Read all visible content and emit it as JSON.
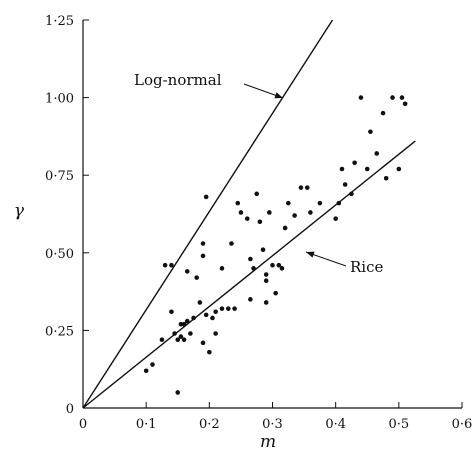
{
  "chart_data": {
    "type": "scatter",
    "xlabel": "m",
    "ylabel": "γ",
    "xlim": [
      0,
      0.6
    ],
    "ylim": [
      0,
      1.25
    ],
    "x_ticks": [
      {
        "value": 0,
        "label": "0"
      },
      {
        "value": 0.1,
        "label": "0·1"
      },
      {
        "value": 0.2,
        "label": "0·2"
      },
      {
        "value": 0.3,
        "label": "0·3"
      },
      {
        "value": 0.4,
        "label": "0·4"
      },
      {
        "value": 0.5,
        "label": "0·5"
      },
      {
        "value": 0.6,
        "label": "0·6"
      }
    ],
    "y_ticks": [
      {
        "value": 0,
        "label": "0"
      },
      {
        "value": 0.25,
        "label": "0·25"
      },
      {
        "value": 0.5,
        "label": "0·50"
      },
      {
        "value": 0.75,
        "label": "0·75"
      },
      {
        "value": 1.0,
        "label": "1·00"
      },
      {
        "value": 1.25,
        "label": "1·25"
      }
    ],
    "grid": false,
    "lines": [
      {
        "label": "Log-normal",
        "x": [
          0,
          0.395
        ],
        "y": [
          0,
          1.25
        ]
      },
      {
        "label": "Rice",
        "x": [
          0,
          0.526
        ],
        "y": [
          0,
          0.86
        ]
      }
    ],
    "annotations": [
      {
        "text": "Log-normal",
        "target": "Log-normal"
      },
      {
        "text": "Rice",
        "target": "Rice"
      }
    ],
    "points": [
      [
        0.1,
        0.12
      ],
      [
        0.11,
        0.14
      ],
      [
        0.125,
        0.22
      ],
      [
        0.13,
        0.46
      ],
      [
        0.14,
        0.46
      ],
      [
        0.14,
        0.31
      ],
      [
        0.145,
        0.24
      ],
      [
        0.15,
        0.05
      ],
      [
        0.15,
        0.22
      ],
      [
        0.155,
        0.23
      ],
      [
        0.155,
        0.27
      ],
      [
        0.16,
        0.22
      ],
      [
        0.16,
        0.27
      ],
      [
        0.165,
        0.28
      ],
      [
        0.165,
        0.44
      ],
      [
        0.17,
        0.24
      ],
      [
        0.175,
        0.29
      ],
      [
        0.18,
        0.42
      ],
      [
        0.185,
        0.34
      ],
      [
        0.19,
        0.21
      ],
      [
        0.19,
        0.49
      ],
      [
        0.19,
        0.53
      ],
      [
        0.195,
        0.68
      ],
      [
        0.195,
        0.3
      ],
      [
        0.2,
        0.18
      ],
      [
        0.205,
        0.29
      ],
      [
        0.21,
        0.24
      ],
      [
        0.21,
        0.31
      ],
      [
        0.22,
        0.45
      ],
      [
        0.22,
        0.32
      ],
      [
        0.23,
        0.32
      ],
      [
        0.235,
        0.53
      ],
      [
        0.24,
        0.32
      ],
      [
        0.245,
        0.66
      ],
      [
        0.25,
        0.63
      ],
      [
        0.26,
        0.61
      ],
      [
        0.265,
        0.48
      ],
      [
        0.265,
        0.35
      ],
      [
        0.27,
        0.45
      ],
      [
        0.275,
        0.69
      ],
      [
        0.28,
        0.6
      ],
      [
        0.285,
        0.51
      ],
      [
        0.29,
        0.43
      ],
      [
        0.29,
        0.41
      ],
      [
        0.29,
        0.34
      ],
      [
        0.295,
        0.63
      ],
      [
        0.3,
        0.46
      ],
      [
        0.305,
        0.37
      ],
      [
        0.31,
        0.46
      ],
      [
        0.315,
        0.45
      ],
      [
        0.32,
        0.58
      ],
      [
        0.325,
        0.66
      ],
      [
        0.335,
        0.62
      ],
      [
        0.345,
        0.71
      ],
      [
        0.355,
        0.71
      ],
      [
        0.36,
        0.63
      ],
      [
        0.375,
        0.66
      ],
      [
        0.4,
        0.61
      ],
      [
        0.405,
        0.66
      ],
      [
        0.41,
        0.77
      ],
      [
        0.415,
        0.72
      ],
      [
        0.425,
        0.69
      ],
      [
        0.43,
        0.79
      ],
      [
        0.44,
        1.0
      ],
      [
        0.45,
        0.77
      ],
      [
        0.455,
        0.89
      ],
      [
        0.465,
        0.82
      ],
      [
        0.475,
        0.95
      ],
      [
        0.48,
        0.74
      ],
      [
        0.49,
        1.0
      ],
      [
        0.5,
        0.77
      ],
      [
        0.505,
        1.0
      ],
      [
        0.51,
        0.98
      ]
    ]
  }
}
